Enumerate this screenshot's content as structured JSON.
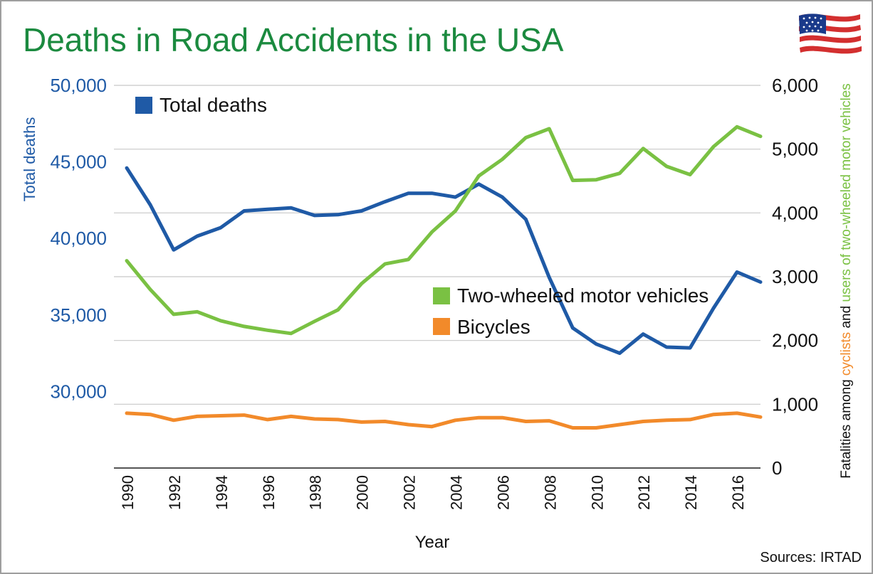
{
  "chart_data": {
    "type": "line",
    "title": "Deaths in Road Accidents in the USA",
    "xlabel": "Year",
    "source": "Sources: IRTAD",
    "x": [
      1990,
      1991,
      1992,
      1993,
      1994,
      1995,
      1996,
      1997,
      1998,
      1999,
      2000,
      2001,
      2002,
      2003,
      2004,
      2005,
      2006,
      2007,
      2008,
      2009,
      2010,
      2011,
      2012,
      2013,
      2014,
      2015,
      2016,
      2017
    ],
    "x_ticks": [
      "1990",
      "1992",
      "1994",
      "1996",
      "1998",
      "2000",
      "2002",
      "2004",
      "2006",
      "2008",
      "2010",
      "2012",
      "2014",
      "2016"
    ],
    "y_left": {
      "label": "Total deaths",
      "ticks": [
        "30,000",
        "35,000",
        "40,000",
        "45,000",
        "50,000"
      ],
      "tick_values": [
        30000,
        35000,
        40000,
        45000,
        50000
      ],
      "range": [
        25000,
        50000
      ],
      "color": "#1f5aa6"
    },
    "y_right": {
      "label_segments": [
        {
          "text": "Fatalities among ",
          "color": "#111111"
        },
        {
          "text": "cyclists",
          "color": "#f28a2a"
        },
        {
          "text": " and ",
          "color": "#111111"
        },
        {
          "text": "users of two-wheeled motor vehicles",
          "color": "#7ac143"
        }
      ],
      "ticks": [
        "0",
        "1,000",
        "2,000",
        "3,000",
        "4,000",
        "5,000",
        "6,000"
      ],
      "tick_values": [
        0,
        1000,
        2000,
        3000,
        4000,
        5000,
        6000
      ],
      "range": [
        0,
        6000
      ]
    },
    "series": [
      {
        "name": "Total deaths",
        "axis": "left",
        "color": "#1f5aa6",
        "values": [
          44600,
          42200,
          39250,
          40150,
          40700,
          41800,
          41900,
          42000,
          41500,
          41550,
          41800,
          42400,
          42950,
          42950,
          42700,
          43550,
          42700,
          41250,
          37450,
          34150,
          33100,
          32500,
          33750,
          32900,
          32850,
          35450,
          37800,
          37150
        ]
      },
      {
        "name": "Two-wheeled motor vehicles",
        "axis": "right",
        "color": "#7ac143",
        "values": [
          3250,
          2800,
          2410,
          2450,
          2310,
          2220,
          2160,
          2110,
          2300,
          2480,
          2890,
          3200,
          3270,
          3700,
          4030,
          4580,
          4840,
          5180,
          5320,
          4510,
          4520,
          4620,
          5010,
          4730,
          4600,
          5040,
          5350,
          5200
        ]
      },
      {
        "name": "Bicycles",
        "axis": "right",
        "color": "#f28a2a",
        "values": [
          860,
          840,
          750,
          810,
          820,
          830,
          760,
          810,
          770,
          760,
          720,
          730,
          680,
          650,
          750,
          790,
          790,
          730,
          740,
          630,
          630,
          680,
          730,
          750,
          760,
          840,
          860,
          800
        ]
      }
    ],
    "legend": [
      "Total deaths",
      "Two-wheeled motor vehicles",
      "Bicycles"
    ],
    "grid": "horizontal",
    "title_color": "#1b8a3f"
  }
}
